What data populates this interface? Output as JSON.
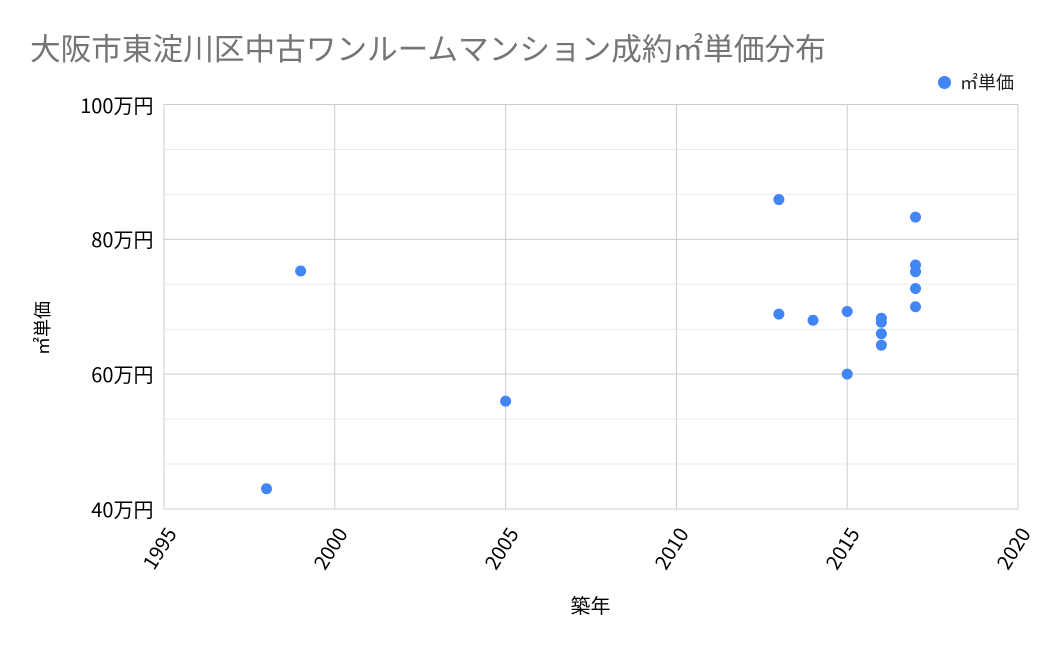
{
  "chart_data": {
    "type": "scatter",
    "title": "大阪市東淀川区中古ワンルームマンション成約㎡単価分布",
    "xlabel": "築年",
    "ylabel": "㎡単価",
    "xlim": [
      1995,
      2020
    ],
    "ylim": [
      40,
      100
    ],
    "x_tick_interval": 5,
    "x_tick_labels": [
      "1995",
      "2000",
      "2005",
      "2010",
      "2015",
      "2020"
    ],
    "y_major_tick_interval": 20,
    "y_minor_divisions_per_major": 3,
    "y_tick_labels": [
      "40万円",
      "60万円",
      "80万円",
      "100万円"
    ],
    "y_unit": "万円",
    "grid": true,
    "legend_position": "top-right",
    "series": [
      {
        "name": "㎡単価",
        "color": "#4285f4",
        "points": [
          {
            "x": 1998,
            "y": 43.0
          },
          {
            "x": 1999,
            "y": 75.3
          },
          {
            "x": 2005,
            "y": 56.0
          },
          {
            "x": 2013,
            "y": 85.9
          },
          {
            "x": 2013,
            "y": 68.9
          },
          {
            "x": 2014,
            "y": 68.0
          },
          {
            "x": 2015,
            "y": 69.3
          },
          {
            "x": 2015,
            "y": 60.0
          },
          {
            "x": 2016,
            "y": 68.3
          },
          {
            "x": 2016,
            "y": 67.7
          },
          {
            "x": 2016,
            "y": 66.0
          },
          {
            "x": 2016,
            "y": 64.3
          },
          {
            "x": 2017,
            "y": 83.3
          },
          {
            "x": 2017,
            "y": 76.2
          },
          {
            "x": 2017,
            "y": 75.2
          },
          {
            "x": 2017,
            "y": 72.7
          },
          {
            "x": 2017,
            "y": 70.0
          }
        ]
      }
    ]
  },
  "colors": {
    "background": "#ffffff",
    "title_text": "#757575",
    "tick_text": "#000000",
    "axis_title_text": "#000000",
    "legend_text": "#1f1f1f",
    "gridline_major": "#cccccc",
    "gridline_minor": "#ebebeb",
    "point": "#4285f4"
  }
}
